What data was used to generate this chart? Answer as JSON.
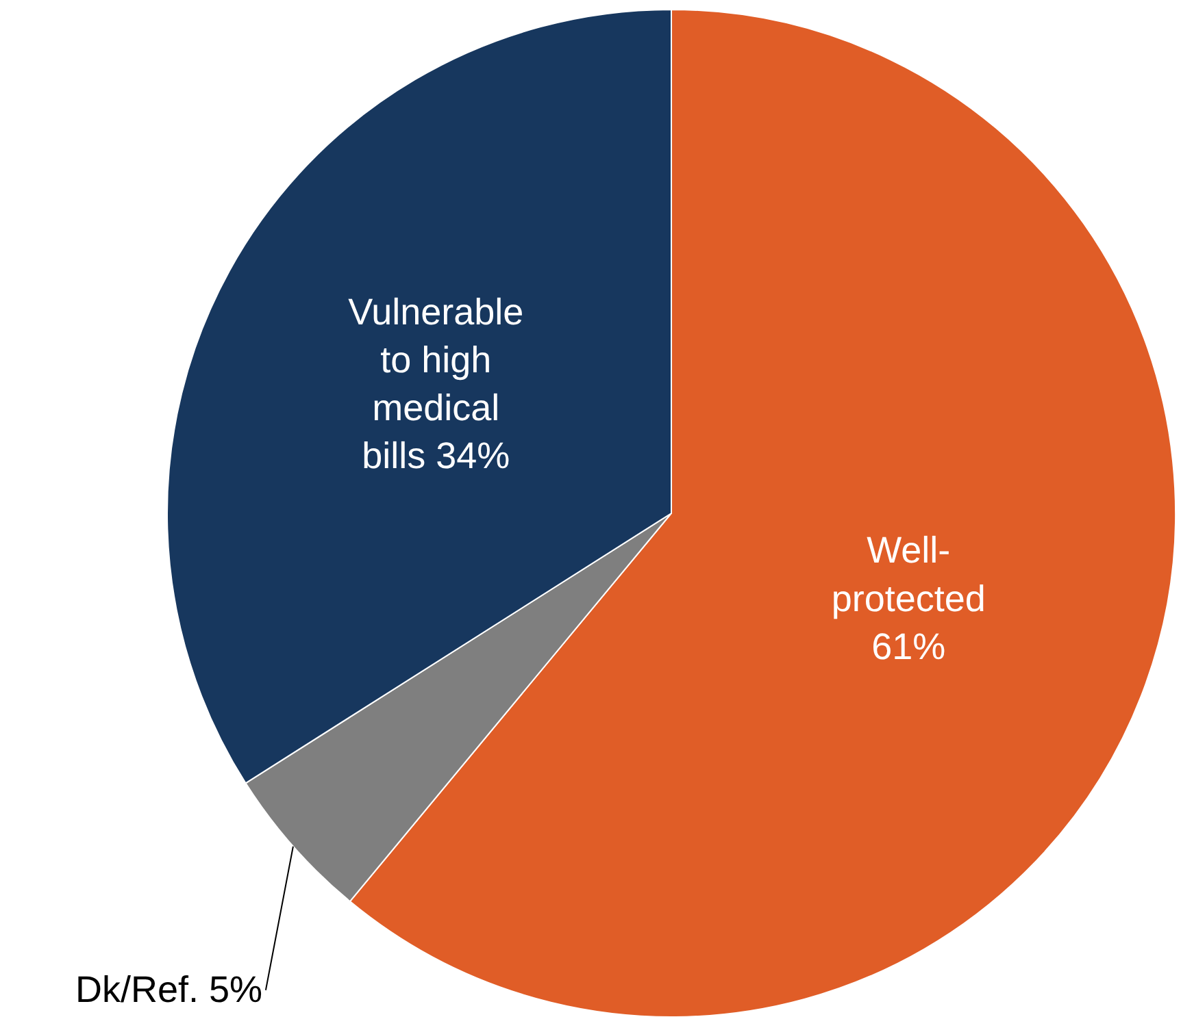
{
  "chart_data": {
    "type": "pie",
    "categories": [
      "Well-\nprotected",
      "Dk/Ref.",
      "Vulnerable\nto high\nmedical\nbills"
    ],
    "values": [
      61,
      5,
      34
    ],
    "value_labels": [
      "61%",
      "5%",
      "34%"
    ],
    "colors": [
      "#e05d27",
      "#7f7f7f",
      "#17375e"
    ]
  }
}
